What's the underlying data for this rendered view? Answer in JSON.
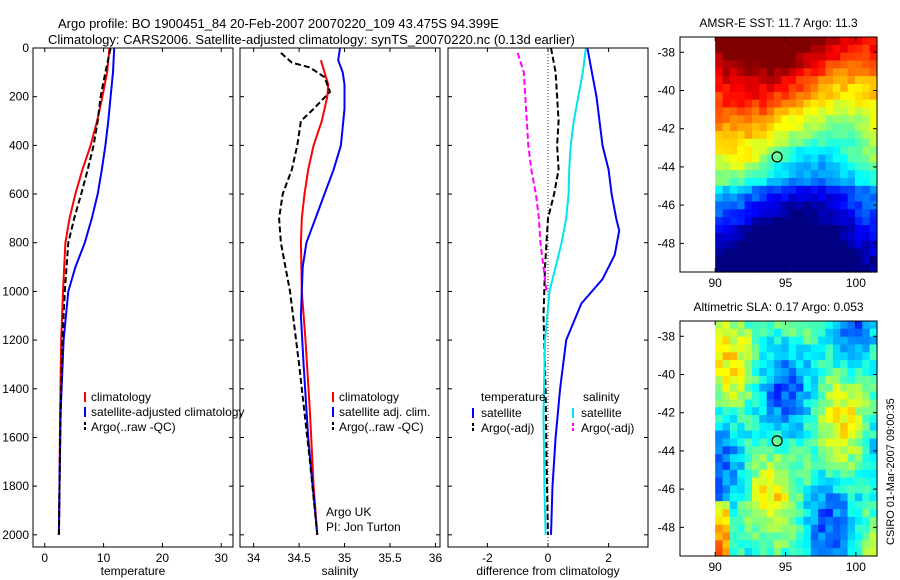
{
  "header": {
    "line1": "Argo profile: BO 1900451_84 20-Feb-2007 20070220_109 43.475S 94.399E",
    "line2": "Climatology: CARS2006. Satellite-adjusted climatology: synTS_20070220.nc (0.13d earlier)"
  },
  "side_text": "CSIRO 01-Mar-2007 09:00:35",
  "colors": {
    "red": "#ff0000",
    "blue": "#0000ff",
    "black": "#000000",
    "cyan": "#00e5ee",
    "magenta": "#ff00ff"
  },
  "chart_data": [
    {
      "type": "line",
      "xlabel": "temperature",
      "xlim": [
        -2,
        32
      ],
      "ylim": [
        0,
        2050
      ],
      "yticks": [
        0,
        200,
        400,
        600,
        800,
        1000,
        1200,
        1400,
        1600,
        1800,
        2000
      ],
      "xticks": [
        0,
        10,
        20,
        30
      ],
      "legend": {
        "placement": "lower-right",
        "entries": [
          "climatology",
          "satellite-adjusted climatology",
          "Argo(..raw -QC)"
        ]
      },
      "series": [
        {
          "name": "climatology",
          "color": "red",
          "style": "solid",
          "x": [
            11.0,
            10.6,
            9.8,
            8.9,
            7.8,
            6.4,
            5.2,
            4.2,
            3.5,
            3.1,
            2.8,
            2.6,
            2.5,
            2.4
          ],
          "y": [
            0,
            100,
            200,
            300,
            400,
            500,
            600,
            700,
            800,
            1000,
            1200,
            1500,
            1800,
            2000
          ]
        },
        {
          "name": "satellite-adjusted climatology",
          "color": "blue",
          "style": "solid",
          "x": [
            11.8,
            11.6,
            11.2,
            10.8,
            10.3,
            9.7,
            9.0,
            8.0,
            6.8,
            5.2,
            4.0,
            3.2,
            2.7,
            2.5,
            2.4
          ],
          "y": [
            0,
            100,
            200,
            300,
            400,
            500,
            600,
            700,
            800,
            900,
            1000,
            1200,
            1500,
            1800,
            2000
          ]
        },
        {
          "name": "Argo(..raw -QC)",
          "color": "black",
          "style": "dashed",
          "x": [
            11.2,
            10.3,
            9.5,
            9.0,
            8.3,
            7.3,
            6.2,
            5.0,
            4.0,
            3.4,
            3.0,
            2.7,
            2.5,
            2.4
          ],
          "y": [
            0,
            100,
            200,
            300,
            400,
            500,
            600,
            700,
            800,
            1000,
            1200,
            1500,
            1800,
            2000
          ]
        }
      ]
    },
    {
      "type": "line",
      "xlabel": "salinity",
      "xlim": [
        33.85,
        36.05
      ],
      "ylim": [
        0,
        2050
      ],
      "xticks": [
        34,
        34.5,
        35,
        35.5,
        36
      ],
      "legend": {
        "placement": "lower-right",
        "entries": [
          "climatology",
          "satellite adj. clim.",
          "Argo(..raw -QC)"
        ]
      },
      "annotation": [
        "Argo UK",
        "PI: Jon Turton"
      ],
      "series": [
        {
          "name": "climatology",
          "color": "red",
          "style": "solid",
          "x": [
            34.74,
            34.78,
            34.82,
            34.81,
            34.75,
            34.66,
            34.6,
            34.56,
            34.53,
            34.52,
            34.53,
            34.57,
            34.62,
            34.66,
            34.7
          ],
          "y": [
            50,
            100,
            150,
            200,
            300,
            400,
            500,
            600,
            700,
            800,
            1000,
            1200,
            1500,
            1800,
            2000
          ]
        },
        {
          "name": "satellite adj. clim.",
          "color": "blue",
          "style": "solid",
          "x": [
            34.95,
            34.93,
            34.98,
            35.0,
            35.0,
            34.96,
            34.88,
            34.78,
            34.68,
            34.58,
            34.54,
            34.52,
            34.55,
            34.6,
            34.65,
            34.7
          ],
          "y": [
            0,
            50,
            100,
            150,
            250,
            400,
            500,
            600,
            700,
            800,
            900,
            1100,
            1300,
            1600,
            1800,
            2000
          ]
        },
        {
          "name": "Argo(..raw -QC)",
          "color": "black",
          "style": "dashed",
          "x": [
            34.3,
            34.42,
            34.62,
            34.78,
            34.84,
            34.66,
            34.52,
            34.48,
            34.42,
            34.32,
            34.28,
            34.3,
            34.4,
            34.5,
            34.62,
            34.7
          ],
          "y": [
            20,
            60,
            80,
            120,
            180,
            250,
            300,
            400,
            500,
            600,
            700,
            800,
            1000,
            1300,
            1700,
            2000
          ]
        }
      ]
    },
    {
      "type": "line",
      "xlabel": "difference from climatology",
      "xlim": [
        -3.3,
        3.3
      ],
      "ylim": [
        0,
        2050
      ],
      "xticks": [
        -2,
        0,
        2
      ],
      "legend": {
        "placement": "lower-center",
        "groups": [
          {
            "title": "temperature",
            "entries": [
              "satellite",
              "Argo(-adj)"
            ]
          },
          {
            "title": "salinity",
            "entries": [
              "satellite",
              "Argo(-adj)"
            ]
          }
        ]
      },
      "series": [
        {
          "name": "satellite",
          "group": "temperature",
          "color": "blue",
          "style": "solid",
          "x": [
            1.3,
            1.45,
            1.6,
            1.7,
            1.8,
            2.0,
            2.1,
            2.25,
            2.35,
            2.2,
            1.8,
            1.1,
            0.6,
            0.4,
            0.25,
            0.15,
            0.1
          ],
          "y": [
            0,
            100,
            200,
            300,
            400,
            500,
            600,
            700,
            750,
            850,
            950,
            1050,
            1200,
            1400,
            1600,
            1800,
            2000
          ]
        },
        {
          "name": "Argo(-adj)",
          "group": "temperature",
          "color": "black",
          "style": "dashed",
          "x": [
            0.1,
            0.25,
            0.3,
            0.35,
            0.3,
            0.35,
            0.2,
            0.0,
            -0.1,
            -0.15,
            -0.08,
            -0.05,
            0.0
          ],
          "y": [
            0,
            100,
            200,
            300,
            400,
            500,
            600,
            700,
            900,
            1100,
            1400,
            1700,
            2000
          ]
        },
        {
          "name": "satellite",
          "group": "salinity",
          "color": "cyan",
          "style": "solid",
          "x": [
            1.25,
            1.15,
            1.0,
            0.85,
            0.75,
            0.7,
            0.68,
            0.6,
            0.45,
            0.25,
            0.05,
            -0.1,
            -0.15,
            -0.12,
            -0.08
          ],
          "y": [
            0,
            100,
            200,
            300,
            400,
            500,
            600,
            700,
            800,
            900,
            1000,
            1200,
            1500,
            1800,
            2000
          ]
        },
        {
          "name": "Argo(-adj)",
          "group": "salinity",
          "color": "magenta",
          "style": "dashed",
          "x": [
            -1.0,
            -0.8,
            -0.75,
            -0.7,
            -0.65,
            -0.55,
            -0.4,
            -0.3,
            -0.25,
            -0.15,
            -0.05
          ],
          "y": [
            20,
            100,
            200,
            300,
            400,
            500,
            600,
            700,
            800,
            900,
            1000
          ]
        }
      ]
    },
    {
      "type": "heatmap",
      "title": "AMSR-E SST: 11.7 Argo: 11.3",
      "xlim": [
        87.5,
        101.5
      ],
      "ylim": [
        -49.5,
        -37.2
      ],
      "xticks": [
        90,
        95,
        100
      ],
      "yticks": [
        -38,
        -40,
        -42,
        -44,
        -46,
        -48
      ],
      "marker": {
        "lon": 94.4,
        "lat": -43.475
      }
    },
    {
      "type": "heatmap",
      "title": "Altimetric SLA: 0.17 Argo: 0.053",
      "xlim": [
        87.5,
        101.5
      ],
      "ylim": [
        -49.5,
        -37.2
      ],
      "xticks": [
        90,
        95,
        100
      ],
      "yticks": [
        -38,
        -40,
        -42,
        -44,
        -46,
        -48
      ],
      "marker": {
        "lon": 94.4,
        "lat": -43.475
      }
    }
  ]
}
